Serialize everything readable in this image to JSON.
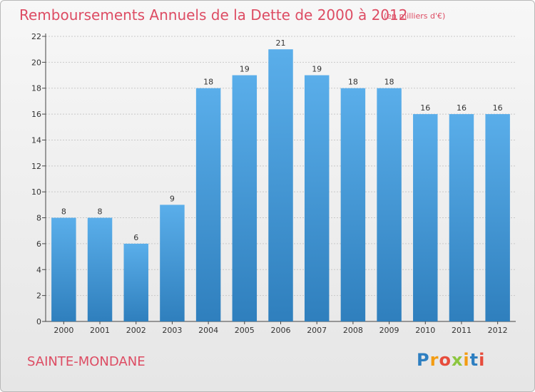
{
  "header": {
    "title": "Remboursements Annuels de la Dette de 2000 à 2012",
    "subtitle": "(en milliers d'€)"
  },
  "footer": {
    "commune": "SAINTE-MONDANE",
    "logo_letters": [
      "P",
      "r",
      "o",
      "x",
      "i",
      "t",
      "i"
    ],
    "logo_colors": [
      "#2e7fc1",
      "#f39c12",
      "#e74c3c",
      "#8cc63f",
      "#f39c12",
      "#2e7fc1",
      "#e74c3c"
    ]
  },
  "colors": {
    "bar_top": "#5aaeea",
    "bar_bottom": "#2f7fbd",
    "axis": "#444444",
    "grid": "#c8c8c8"
  },
  "chart_data": {
    "type": "bar",
    "title": "Remboursements Annuels de la Dette de 2000 à 2012",
    "subtitle": "(en milliers d'€)",
    "categories": [
      "2000",
      "2001",
      "2002",
      "2003",
      "2004",
      "2005",
      "2006",
      "2007",
      "2008",
      "2009",
      "2010",
      "2011",
      "2012"
    ],
    "values": [
      8,
      8,
      6,
      9,
      18,
      19,
      21,
      19,
      18,
      18,
      16,
      16,
      16
    ],
    "xlabel": "",
    "ylabel": "",
    "ylim": [
      0,
      22
    ],
    "yticks": [
      0,
      2,
      4,
      6,
      8,
      10,
      12,
      14,
      16,
      18,
      20,
      22
    ],
    "grid": true,
    "legend": "none"
  }
}
